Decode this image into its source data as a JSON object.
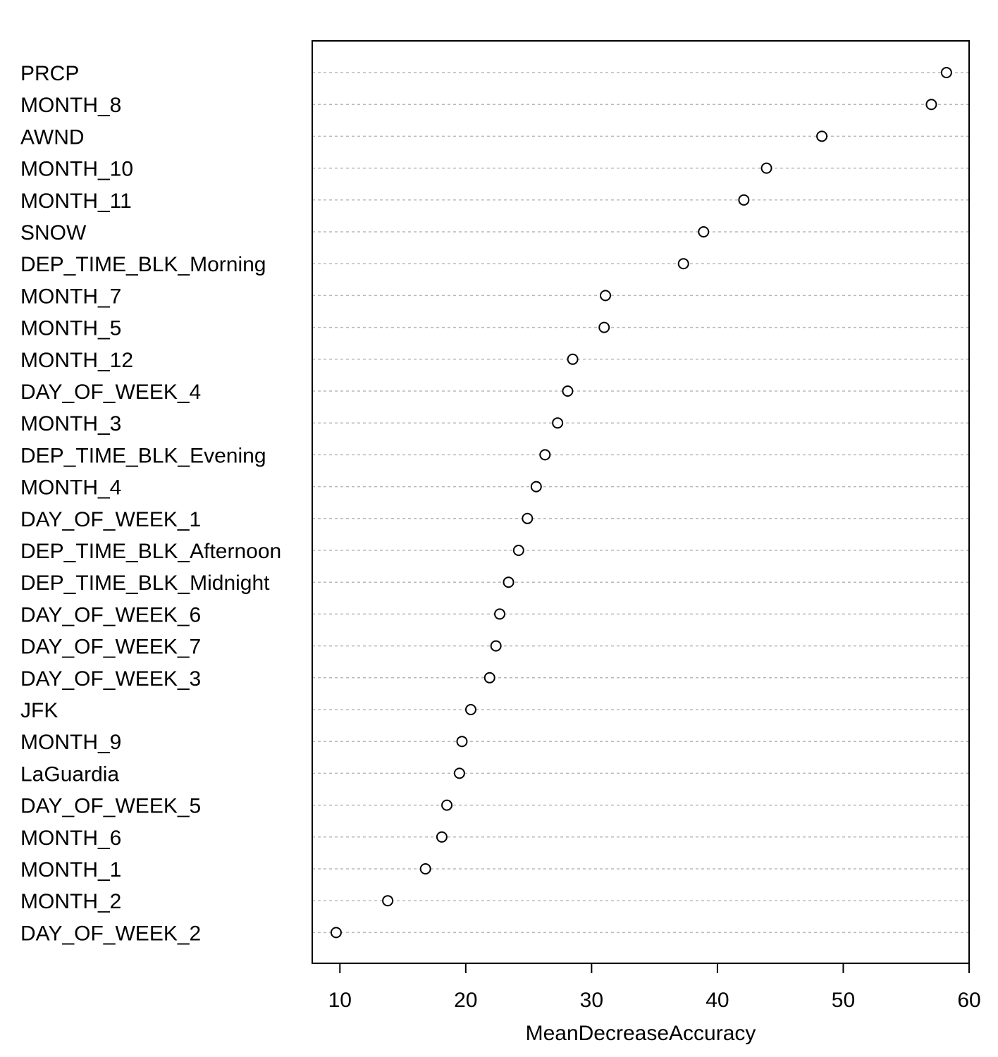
{
  "chart_data": {
    "type": "scatter",
    "subtype": "dotchart",
    "title": "",
    "xlabel": "MeanDecreaseAccuracy",
    "ylabel": "",
    "xlim": [
      7.8,
      60
    ],
    "xticks": [
      10,
      20,
      30,
      40,
      50,
      60
    ],
    "grid": "horizontal dotted lines per variable",
    "marker": "open circle",
    "categories": [
      "PRCP",
      "MONTH_8",
      "AWND",
      "MONTH_10",
      "MONTH_11",
      "SNOW",
      "DEP_TIME_BLK_Morning",
      "MONTH_7",
      "MONTH_5",
      "MONTH_12",
      "DAY_OF_WEEK_4",
      "MONTH_3",
      "DEP_TIME_BLK_Evening",
      "MONTH_4",
      "DAY_OF_WEEK_1",
      "DEP_TIME_BLK_Afternoon",
      "DEP_TIME_BLK_Midnight",
      "DAY_OF_WEEK_6",
      "DAY_OF_WEEK_7",
      "DAY_OF_WEEK_3",
      "JFK",
      "MONTH_9",
      "LaGuardia",
      "DAY_OF_WEEK_5",
      "MONTH_6",
      "MONTH_1",
      "MONTH_2",
      "DAY_OF_WEEK_2"
    ],
    "values": [
      58.2,
      57.0,
      48.3,
      43.9,
      42.1,
      38.9,
      37.3,
      31.1,
      31.0,
      28.5,
      28.1,
      27.3,
      26.3,
      25.6,
      24.9,
      24.2,
      23.4,
      22.7,
      22.4,
      21.9,
      20.4,
      19.7,
      19.5,
      18.5,
      18.1,
      16.8,
      13.8,
      9.7
    ]
  }
}
